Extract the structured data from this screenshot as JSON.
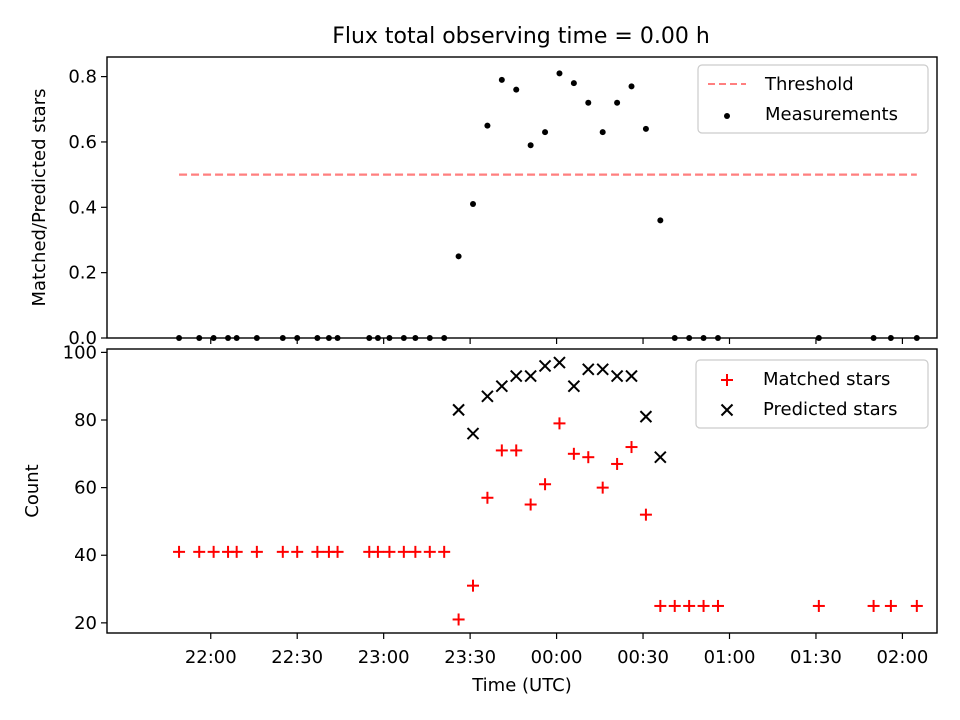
{
  "chart_data": [
    {
      "type": "scatter",
      "title": "Flux total observing time = 0.00 h",
      "xlabel": "",
      "ylabel": "Matched/Predicted stars",
      "ylim": [
        0,
        0.86
      ],
      "yticks": [
        "0.0",
        "0.2",
        "0.4",
        "0.6",
        "0.8"
      ],
      "ytick_values": [
        0,
        0.2,
        0.4,
        0.6,
        0.8
      ],
      "legend_position": "top-right",
      "grid": false,
      "threshold": {
        "name": "Threshold",
        "value": 0.5,
        "x_start": "21:49",
        "x_end": "02:05",
        "color": "#ff7f7f",
        "style": "dashed"
      },
      "series": [
        {
          "name": "Measurements",
          "marker": "dot",
          "color": "#000000",
          "x": [
            "21:49",
            "21:56",
            "22:01",
            "22:06",
            "22:09",
            "22:16",
            "22:25",
            "22:30",
            "22:37",
            "22:41",
            "22:44",
            "22:55",
            "22:58",
            "23:02",
            "23:07",
            "23:11",
            "23:16",
            "23:21",
            "23:26",
            "23:31",
            "23:36",
            "23:41",
            "23:46",
            "23:51",
            "23:56",
            "00:01",
            "00:06",
            "00:11",
            "00:16",
            "00:21",
            "00:26",
            "00:31",
            "00:36",
            "00:41",
            "00:46",
            "00:51",
            "00:56",
            "01:31",
            "01:50",
            "01:56",
            "02:05"
          ],
          "y": [
            0,
            0,
            0,
            0,
            0,
            0,
            0,
            0,
            0,
            0,
            0,
            0,
            0,
            0,
            0,
            0,
            0,
            0,
            0.25,
            0.41,
            0.65,
            0.79,
            0.76,
            0.59,
            0.63,
            0.81,
            0.78,
            0.72,
            0.63,
            0.72,
            0.77,
            0.64,
            0.36,
            0,
            0,
            0,
            0,
            0,
            0,
            0,
            0
          ]
        }
      ]
    },
    {
      "type": "scatter",
      "title": "",
      "xlabel": "Time (UTC)",
      "ylabel": "Count",
      "ylim": [
        17,
        101
      ],
      "yticks": [
        "20",
        "40",
        "60",
        "80",
        "100"
      ],
      "ytick_values": [
        20,
        40,
        60,
        80,
        100
      ],
      "xtick_labels": [
        "22:00",
        "22:30",
        "23:00",
        "23:30",
        "00:00",
        "00:30",
        "01:00",
        "01:30",
        "02:00"
      ],
      "legend_position": "top-right",
      "grid": false,
      "series": [
        {
          "name": "Matched stars",
          "marker": "plus",
          "color": "#ff0000",
          "x": [
            "21:49",
            "21:56",
            "22:01",
            "22:06",
            "22:09",
            "22:16",
            "22:25",
            "22:30",
            "22:37",
            "22:41",
            "22:44",
            "22:55",
            "22:58",
            "23:02",
            "23:07",
            "23:11",
            "23:16",
            "23:21",
            "23:26",
            "23:31",
            "23:36",
            "23:41",
            "23:46",
            "23:51",
            "23:56",
            "00:01",
            "00:06",
            "00:11",
            "00:16",
            "00:21",
            "00:26",
            "00:31",
            "00:36",
            "00:41",
            "00:46",
            "00:51",
            "00:56",
            "01:31",
            "01:50",
            "01:56",
            "02:05"
          ],
          "y": [
            41,
            41,
            41,
            41,
            41,
            41,
            41,
            41,
            41,
            41,
            41,
            41,
            41,
            41,
            41,
            41,
            41,
            41,
            21,
            31,
            57,
            71,
            71,
            55,
            61,
            79,
            70,
            69,
            60,
            67,
            72,
            52,
            25,
            25,
            25,
            25,
            25,
            25,
            25,
            25,
            25
          ]
        },
        {
          "name": "Predicted stars",
          "marker": "x",
          "color": "#000000",
          "x": [
            "23:26",
            "23:31",
            "23:36",
            "23:41",
            "23:46",
            "23:51",
            "23:56",
            "00:01",
            "00:06",
            "00:11",
            "00:16",
            "00:21",
            "00:26",
            "00:31",
            "00:36"
          ],
          "y": [
            83,
            76,
            87,
            90,
            93,
            93,
            96,
            97,
            90,
            95,
            95,
            93,
            93,
            81,
            69
          ]
        }
      ]
    }
  ]
}
